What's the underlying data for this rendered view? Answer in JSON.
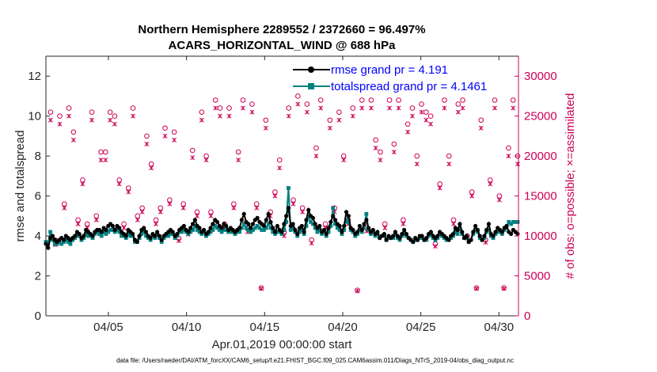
{
  "chart_data": {
    "type": "line",
    "title_line1": "Northern Hemisphere 2289552 / 2372660 = 96.497%",
    "title_line2": "ACARS_HORIZONTAL_WIND @ 688 hPa",
    "xlabel": "Apr.01,2019 00:00:00 start",
    "ylabel_left": "rmse and totalspread",
    "ylabel_right": "# of obs: o=possible; ×=assimilated",
    "x_range_days": [
      0,
      30.25
    ],
    "ylim_left": [
      0,
      13
    ],
    "ylim_right": [
      0,
      32500
    ],
    "x_ticks": [
      {
        "label": "04/05",
        "day": 4
      },
      {
        "label": "04/10",
        "day": 9
      },
      {
        "label": "04/15",
        "day": 14
      },
      {
        "label": "04/20",
        "day": 19
      },
      {
        "label": "04/25",
        "day": 24
      },
      {
        "label": "04/30",
        "day": 29
      }
    ],
    "y_ticks_left": [
      "0",
      "2",
      "4",
      "6",
      "8",
      "10",
      "12"
    ],
    "y_ticks_right": [
      "0",
      "5000",
      "10000",
      "15000",
      "20000",
      "25000",
      "30000"
    ],
    "colors": {
      "rmse": "#000000",
      "spread": "#008080",
      "obs": "#cc0055",
      "legend_text": "#0000ff"
    },
    "series": [
      {
        "name": "rmse",
        "legend": "rmse grand pr = 4.191",
        "values": [
          3.6,
          3.4,
          3.9,
          4.0,
          3.8,
          3.7,
          3.8,
          3.9,
          3.8,
          4.0,
          3.9,
          3.8,
          3.9,
          4.0,
          4.2,
          4.1,
          3.9,
          4.0,
          4.3,
          4.2,
          4.1,
          4.0,
          4.2,
          4.3,
          4.3,
          4.2,
          4.4,
          4.3,
          4.5,
          4.6,
          4.5,
          4.3,
          4.5,
          4.4,
          4.2,
          4.1,
          4.0,
          4.3,
          4.2,
          4.1,
          3.8,
          3.7,
          4.0,
          4.3,
          4.4,
          4.2,
          4.0,
          3.9,
          4.1,
          4.0,
          4.2,
          4.0,
          3.8,
          4.0,
          4.1,
          4.2,
          4.3,
          4.2,
          4.0,
          4.1,
          4.3,
          4.4,
          4.5,
          4.3,
          4.2,
          4.4,
          4.6,
          4.8,
          4.5,
          4.4,
          4.2,
          4.3,
          4.1,
          4.2,
          4.4,
          4.6,
          4.8,
          4.7,
          4.5,
          4.4,
          4.6,
          4.5,
          4.3,
          4.4,
          4.3,
          4.2,
          4.3,
          4.4,
          4.8,
          5.1,
          4.7,
          4.6,
          4.4,
          4.6,
          4.8,
          4.9,
          4.7,
          4.6,
          4.5,
          4.8,
          5.1,
          4.7,
          4.4,
          4.2,
          4.5,
          4.3,
          4.2,
          4.6,
          5.0,
          5.4,
          4.5,
          4.6,
          4.3,
          4.1,
          4.4,
          4.5,
          4.2,
          4.8,
          5.3,
          5.0,
          4.9,
          4.6,
          4.4,
          4.5,
          4.2,
          4.3,
          4.1,
          4.4,
          4.7,
          5.0,
          4.8,
          4.6,
          4.5,
          4.2,
          4.5,
          5.2,
          5.0,
          4.4,
          4.3,
          4.1,
          4.2,
          4.5,
          4.3,
          4.6,
          4.8,
          4.4,
          4.2,
          4.3,
          4.1,
          4.2,
          3.9,
          4.0,
          4.1,
          3.8,
          4.0,
          3.9,
          4.0,
          4.2,
          4.0,
          3.9,
          4.1,
          4.3,
          4.1,
          3.9,
          3.8,
          3.7,
          3.9,
          3.8,
          4.0,
          4.0,
          3.8,
          3.9,
          4.1,
          4.2,
          4.0,
          3.9,
          4.0,
          4.2,
          4.1,
          4.0,
          3.9,
          3.8,
          4.0,
          4.1,
          4.4,
          4.3,
          4.6,
          4.2,
          3.9,
          4.0,
          3.7,
          3.8,
          4.2,
          4.5,
          4.3,
          4.0,
          3.8,
          4.0,
          4.3,
          4.6,
          4.1,
          4.0,
          4.2,
          4.4,
          4.3,
          4.2,
          4.4,
          4.5,
          4.2,
          4.1,
          4.3,
          4.2,
          4.1
        ]
      },
      {
        "name": "totalspread",
        "legend": "totalspread grand pr = 4.1461",
        "values": [
          3.7,
          3.6,
          4.2,
          3.8,
          3.6,
          3.6,
          3.7,
          3.6,
          3.7,
          3.8,
          3.7,
          3.6,
          3.8,
          3.9,
          4.0,
          4.0,
          3.8,
          3.9,
          4.1,
          4.0,
          4.0,
          3.9,
          4.1,
          4.2,
          4.1,
          4.0,
          4.2,
          4.1,
          4.2,
          4.3,
          4.3,
          4.2,
          4.3,
          4.2,
          4.0,
          4.0,
          3.9,
          4.1,
          4.0,
          4.0,
          3.7,
          3.7,
          3.9,
          4.1,
          4.2,
          4.0,
          3.9,
          3.8,
          4.0,
          3.9,
          4.1,
          3.9,
          3.7,
          3.9,
          4.0,
          4.0,
          4.1,
          4.1,
          3.9,
          4.0,
          4.2,
          4.2,
          4.3,
          4.2,
          4.1,
          4.2,
          4.3,
          4.5,
          4.3,
          4.2,
          4.1,
          4.2,
          4.0,
          4.1,
          4.2,
          4.3,
          4.5,
          4.4,
          4.3,
          4.2,
          4.3,
          4.3,
          4.2,
          4.2,
          4.2,
          4.1,
          4.2,
          4.2,
          4.4,
          4.6,
          4.4,
          4.3,
          4.2,
          4.3,
          4.4,
          4.5,
          4.4,
          4.3,
          4.3,
          4.4,
          4.6,
          4.4,
          4.2,
          4.1,
          4.2,
          4.2,
          4.1,
          4.3,
          4.7,
          6.4,
          4.3,
          4.4,
          4.2,
          4.0,
          4.2,
          4.3,
          4.1,
          4.5,
          5.0,
          4.7,
          4.6,
          4.4,
          4.2,
          4.3,
          4.1,
          4.2,
          4.0,
          4.2,
          4.5,
          5.4,
          4.6,
          4.4,
          4.3,
          4.1,
          4.3,
          4.8,
          4.7,
          4.3,
          4.2,
          4.0,
          4.1,
          4.3,
          4.2,
          4.4,
          5.1,
          4.3,
          4.1,
          4.2,
          4.0,
          4.1,
          3.9,
          4.0,
          4.0,
          3.8,
          3.9,
          3.9,
          3.9,
          4.1,
          3.9,
          3.8,
          4.0,
          4.1,
          4.0,
          3.9,
          3.8,
          3.7,
          3.8,
          3.8,
          3.9,
          3.9,
          3.8,
          3.8,
          4.0,
          4.1,
          3.9,
          3.8,
          3.9,
          4.1,
          4.0,
          3.9,
          3.8,
          3.8,
          3.9,
          4.0,
          4.2,
          4.1,
          4.4,
          4.1,
          3.9,
          3.9,
          3.7,
          3.8,
          4.1,
          4.3,
          4.2,
          3.9,
          3.8,
          3.9,
          4.2,
          4.3,
          4.0,
          3.9,
          4.1,
          4.2,
          4.2,
          4.1,
          4.3,
          4.4,
          4.7,
          4.6,
          4.7,
          4.7,
          4.7
        ]
      },
      {
        "name": "possible",
        "values": [
          25500,
          9500,
          25000,
          14000,
          26000,
          23000,
          12000,
          17000,
          11500,
          25500,
          12500,
          20500,
          20500,
          25500,
          25000,
          17000,
          11500,
          16000,
          26000,
          12500,
          13500,
          22500,
          19000,
          12000,
          13500,
          23500,
          14500,
          23000,
          9700,
          14000,
          10500,
          20700,
          13000,
          25500,
          20000,
          13000,
          27000,
          26000,
          11500,
          26000,
          14000,
          20500,
          27000,
          11000,
          26500,
          14000,
          3500,
          24500,
          13000,
          15500,
          19500,
          10500,
          26000,
          14500,
          27500,
          13500,
          26500,
          9500,
          21000,
          27000,
          11500,
          24500,
          13500,
          25500,
          20000,
          12000,
          26000,
          3200,
          27000,
          11000,
          27000,
          22000,
          20500,
          11500,
          27000,
          21500,
          27000,
          12000,
          24000,
          26000,
          20000,
          26500,
          25500,
          25000,
          9000,
          16500,
          27000,
          20000,
          12000,
          26500,
          27000,
          10000,
          15500,
          3500,
          24500,
          9500,
          17000,
          27000,
          15000,
          3500,
          21000,
          27000,
          20000
        ]
      },
      {
        "name": "assimilated",
        "values": [
          24500,
          8900,
          24000,
          13500,
          25000,
          22000,
          11500,
          16500,
          11000,
          24500,
          12000,
          19500,
          19500,
          24500,
          24000,
          16500,
          11000,
          15500,
          25000,
          12000,
          13000,
          21500,
          18500,
          11500,
          13000,
          22500,
          14000,
          22000,
          9400,
          13500,
          10200,
          19800,
          12500,
          24500,
          19500,
          12500,
          26000,
          25000,
          11000,
          25000,
          13500,
          19500,
          26000,
          10500,
          25500,
          13500,
          3400,
          23500,
          12500,
          15000,
          18500,
          10000,
          25000,
          14000,
          26500,
          13000,
          25500,
          9100,
          20000,
          26000,
          11000,
          23500,
          13000,
          24500,
          19500,
          11500,
          25000,
          3100,
          26000,
          10600,
          26000,
          21000,
          19500,
          11000,
          26000,
          20500,
          26000,
          11500,
          23000,
          25000,
          19000,
          25500,
          24500,
          24000,
          8700,
          16000,
          26000,
          19000,
          11500,
          25500,
          26000,
          9700,
          15000,
          3400,
          23500,
          9200,
          16500,
          26000,
          14500,
          3400,
          20000,
          26000,
          19000
        ]
      }
    ],
    "footer": "data file: /Users/raeder/DAI/ATM_forcXX/CAM6_setup/f.e21.FHIST_BGC.f09_025.CAM6assim.011/Diags_NTrS_2019-04/obs_diag_output.nc"
  }
}
